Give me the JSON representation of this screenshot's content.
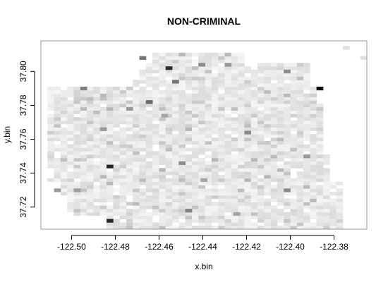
{
  "chart_data": {
    "type": "heatmap",
    "title": "NON-CRIMINAL",
    "xlabel": "x.bin",
    "ylabel": "y.bin",
    "xlim": [
      -122.514,
      -122.365
    ],
    "ylim": [
      37.707,
      37.818
    ],
    "x_ticks": [
      -122.5,
      -122.48,
      -122.46,
      -122.44,
      -122.42,
      -122.4,
      -122.38
    ],
    "x_tick_labels": [
      "-122.50",
      "-122.48",
      "-122.46",
      "-122.44",
      "-122.42",
      "-122.40",
      "-122.38"
    ],
    "y_ticks": [
      37.72,
      37.74,
      37.76,
      37.78,
      37.8
    ],
    "y_tick_labels": [
      "37.72",
      "37.74",
      "37.76",
      "37.78",
      "37.80"
    ],
    "bin_size": {
      "x": 0.003,
      "y": 0.002
    },
    "color_scale": {
      "low": "#ffffff",
      "high": "#000000"
    },
    "grid": false,
    "legend": "none",
    "dark_bins": [
      {
        "x": -122.3865,
        "y": 37.79,
        "value": 0.95
      },
      {
        "x": -122.4825,
        "y": 37.744,
        "value": 0.85
      },
      {
        "x": -122.4825,
        "y": 37.712,
        "value": 0.85
      },
      {
        "x": -122.4555,
        "y": 37.802,
        "value": 0.82
      },
      {
        "x": -122.4675,
        "y": 37.808,
        "value": 0.55
      },
      {
        "x": -122.4645,
        "y": 37.782,
        "value": 0.6
      },
      {
        "x": -122.4525,
        "y": 37.794,
        "value": 0.55
      },
      {
        "x": -122.4945,
        "y": 37.79,
        "value": 0.5
      },
      {
        "x": -122.4015,
        "y": 37.8,
        "value": 0.45
      },
      {
        "x": -122.4405,
        "y": 37.804,
        "value": 0.45
      },
      {
        "x": -122.4285,
        "y": 37.804,
        "value": 0.42
      },
      {
        "x": -122.4195,
        "y": 37.764,
        "value": 0.45
      },
      {
        "x": -122.4495,
        "y": 37.746,
        "value": 0.45
      },
      {
        "x": -122.4465,
        "y": 37.718,
        "value": 0.5
      },
      {
        "x": -122.4015,
        "y": 37.73,
        "value": 0.45
      },
      {
        "x": -122.3925,
        "y": 37.75,
        "value": 0.4
      },
      {
        "x": -122.4855,
        "y": 37.766,
        "value": 0.4
      },
      {
        "x": -122.4735,
        "y": 37.778,
        "value": 0.4
      },
      {
        "x": -122.5065,
        "y": 37.73,
        "value": 0.4
      },
      {
        "x": -122.4975,
        "y": 37.73,
        "value": 0.38
      },
      {
        "x": -122.4395,
        "y": 37.736,
        "value": 0.35
      },
      {
        "x": -122.4575,
        "y": 37.774,
        "value": 0.35
      },
      {
        "x": -122.4245,
        "y": 37.716,
        "value": 0.35
      },
      {
        "x": -122.3745,
        "y": 37.814,
        "value": 0.12
      },
      {
        "x": -122.3665,
        "y": 37.808,
        "value": 0.12
      }
    ]
  }
}
